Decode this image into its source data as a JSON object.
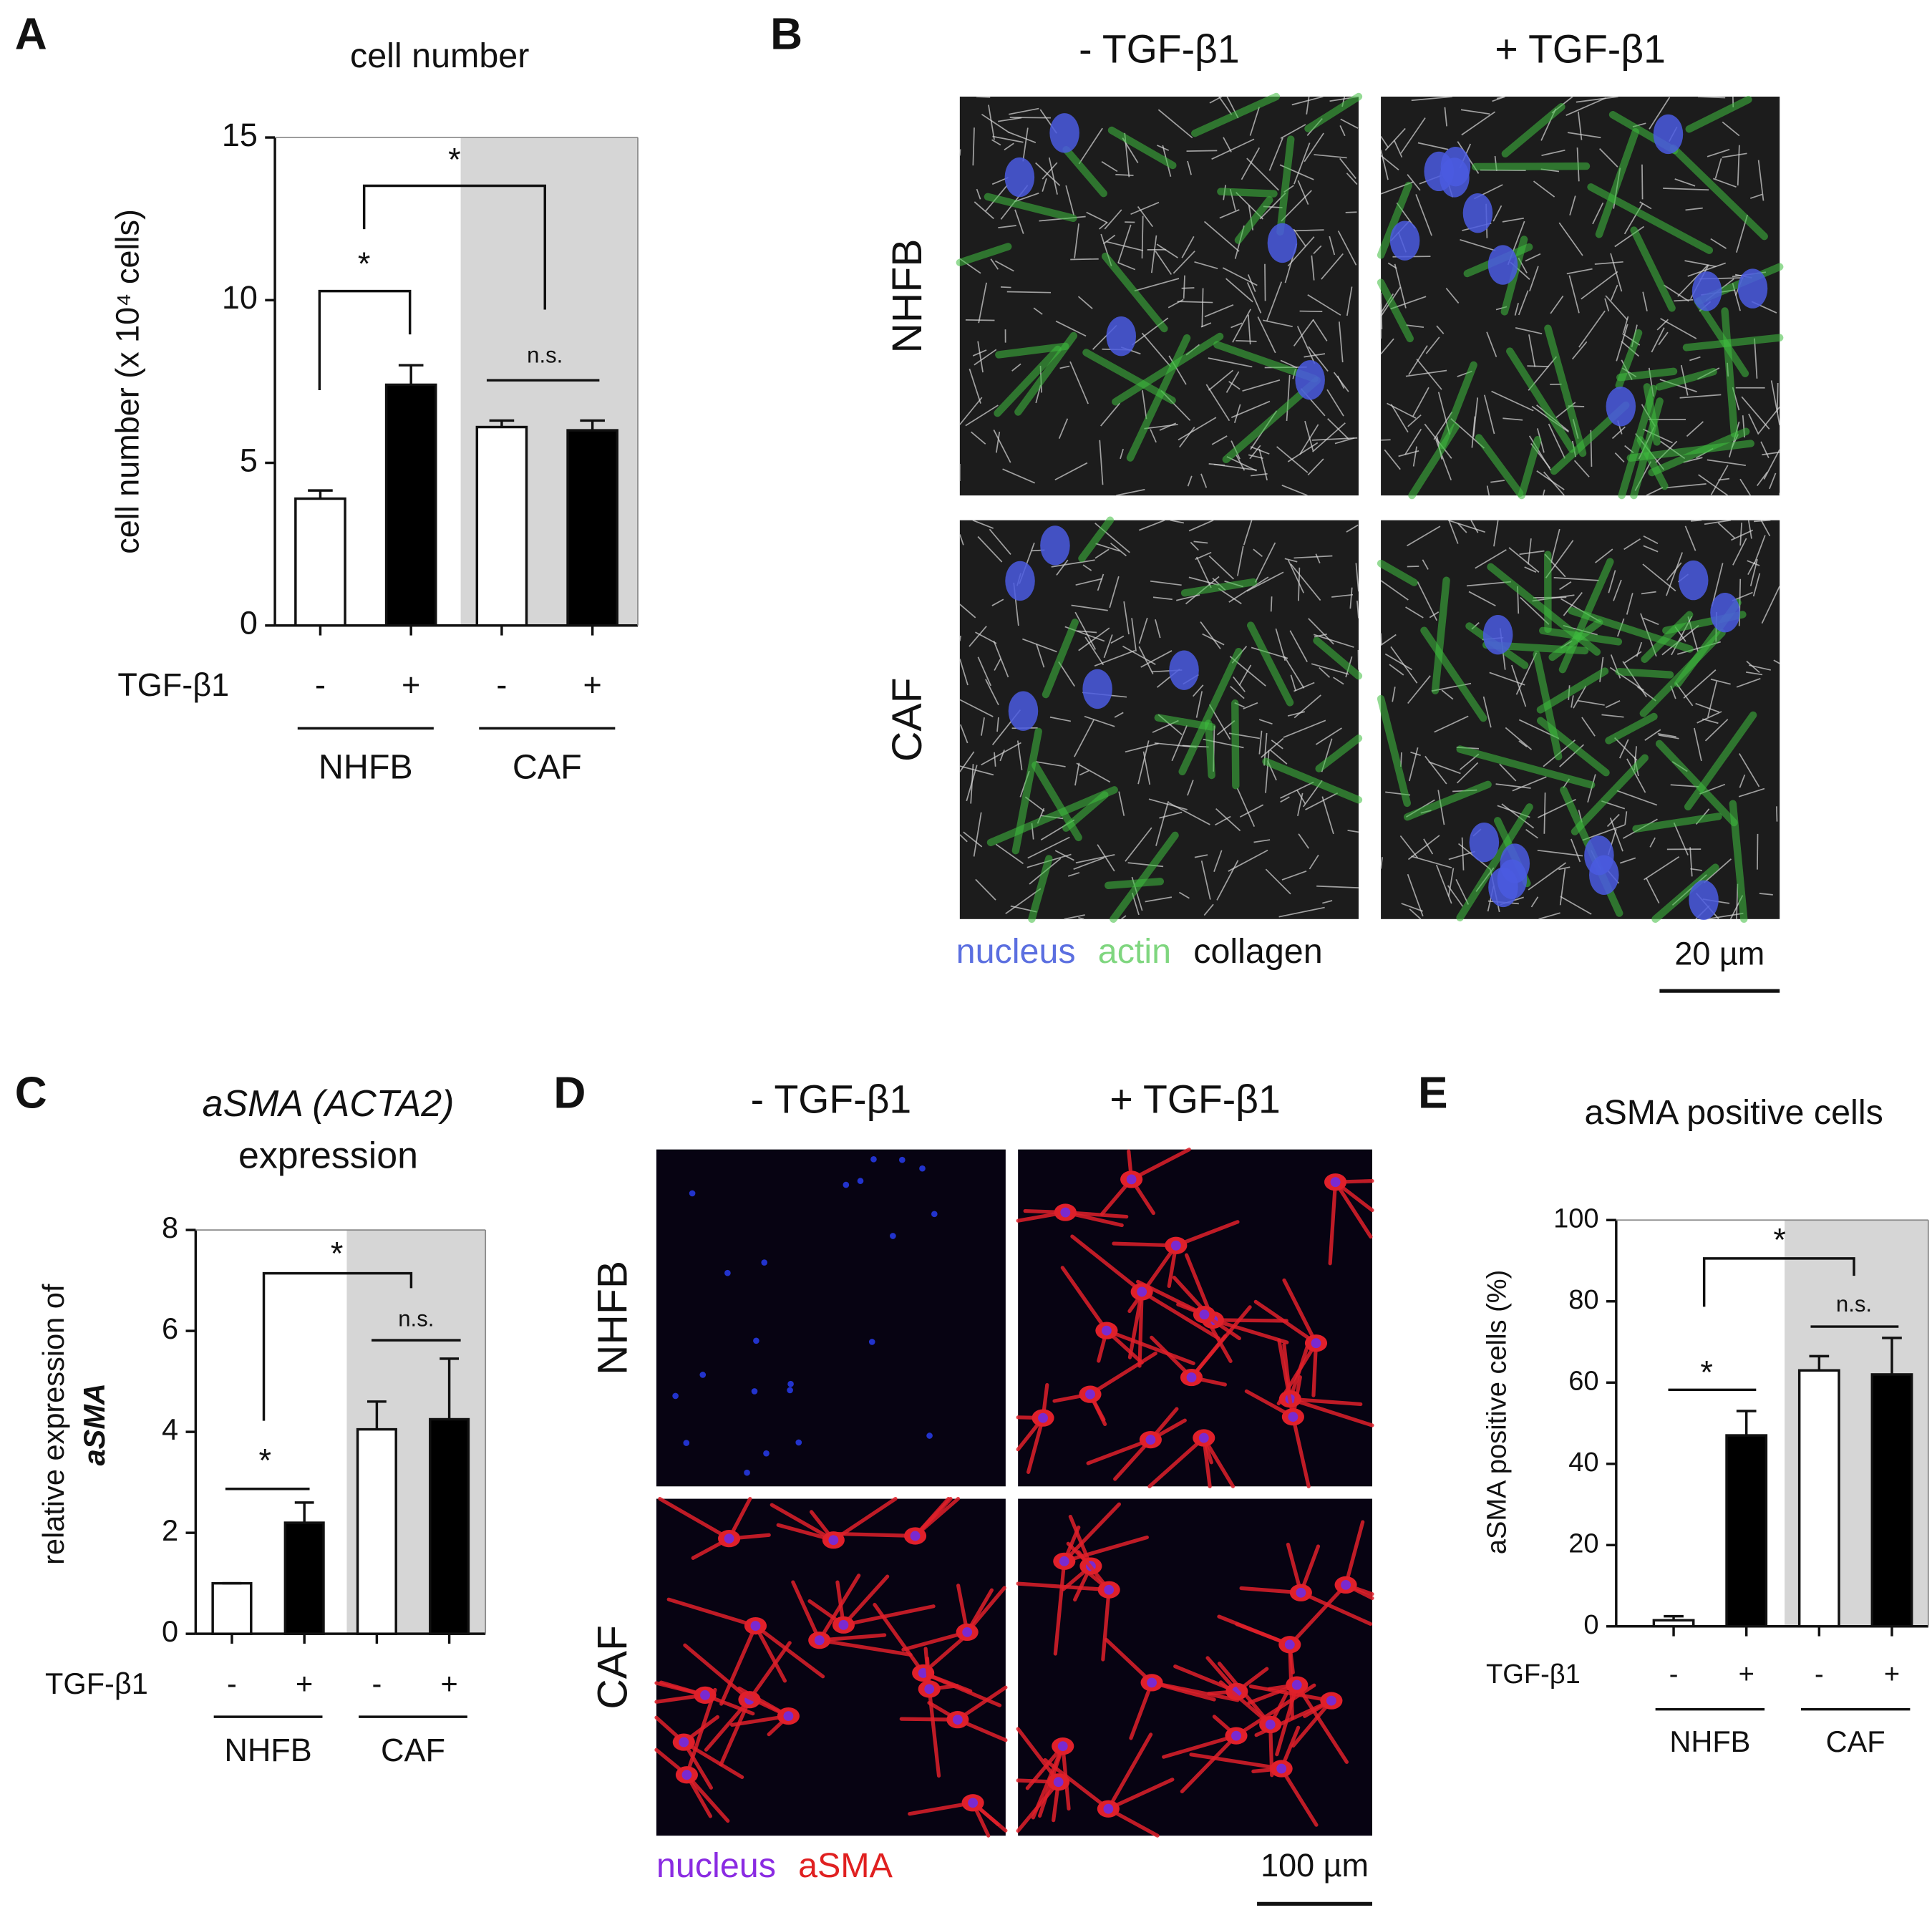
{
  "chart_data": [
    {
      "panel": "A",
      "type": "bar",
      "title": [
        "cell number"
      ],
      "y_label": [
        "cell number (x 10⁴ cells)"
      ],
      "row_label": "TGF-β1",
      "categories": [
        "-",
        "+",
        "-",
        "+"
      ],
      "groups": [
        "NHFB",
        "CAF"
      ],
      "values": [
        3.9,
        7.4,
        6.1,
        6.0
      ],
      "errors": [
        0.25,
        0.6,
        0.2,
        0.3
      ],
      "colors": [
        "#ffffff",
        "#000000",
        "#ffffff",
        "#000000"
      ],
      "ylim": [
        0,
        15
      ],
      "yticks": [
        0,
        5,
        10,
        15
      ],
      "annotations": [
        "*",
        "*",
        "n.s."
      ]
    },
    {
      "panel": "C",
      "type": "bar",
      "title": [
        "aSMA (ACTA2)",
        "expression"
      ],
      "y_label": [
        "relative expression of",
        "aSMA"
      ],
      "row_label": "TGF-β1",
      "categories": [
        "-",
        "+",
        "-",
        "+"
      ],
      "groups": [
        "NHFB",
        "CAF"
      ],
      "values": [
        1.0,
        2.2,
        4.05,
        4.25
      ],
      "errors": [
        0,
        0.4,
        0.55,
        1.2
      ],
      "colors": [
        "#ffffff",
        "#000000",
        "#ffffff",
        "#000000"
      ],
      "ylim": [
        0,
        8
      ],
      "yticks": [
        0,
        2,
        4,
        6,
        8
      ],
      "annotations": [
        "*",
        "*",
        "n.s."
      ]
    },
    {
      "panel": "E",
      "type": "bar",
      "title": [
        "aSMA positive cells"
      ],
      "y_label": [
        "aSMA positive cells (%)"
      ],
      "row_label": "TGF-β1",
      "categories": [
        "-",
        "+",
        "-",
        "+"
      ],
      "groups": [
        "NHFB",
        "CAF"
      ],
      "values": [
        1.5,
        47,
        63,
        62
      ],
      "errors": [
        1,
        6,
        3.5,
        9
      ],
      "colors": [
        "#ffffff",
        "#000000",
        "#ffffff",
        "#000000"
      ],
      "ylim": [
        0,
        100
      ],
      "yticks": [
        0,
        20,
        40,
        60,
        80,
        100
      ],
      "annotations": [
        "*",
        "*",
        "n.s."
      ]
    }
  ],
  "panels": [
    {
      "panel": "B",
      "columns": [
        "- TGF-β1",
        "+ TGF-β1"
      ],
      "rows": [
        "NHFB",
        "CAF"
      ],
      "legend": [
        {
          "text": "nucleus",
          "color": "#5b6fe0"
        },
        {
          "text": "actin",
          "color": "#7fd67f"
        },
        {
          "text": "collagen",
          "color": "#111111"
        }
      ],
      "scale_bar": "20 µm"
    },
    {
      "panel": "D",
      "columns": [
        "- TGF-β1",
        "+ TGF-β1"
      ],
      "rows": [
        "NHFB",
        "CAF"
      ],
      "legend": [
        {
          "text": "nucleus",
          "color": "#8a2be2"
        },
        {
          "text": "aSMA",
          "color": "#e02020"
        }
      ],
      "scale_bar": "100 µm"
    }
  ]
}
